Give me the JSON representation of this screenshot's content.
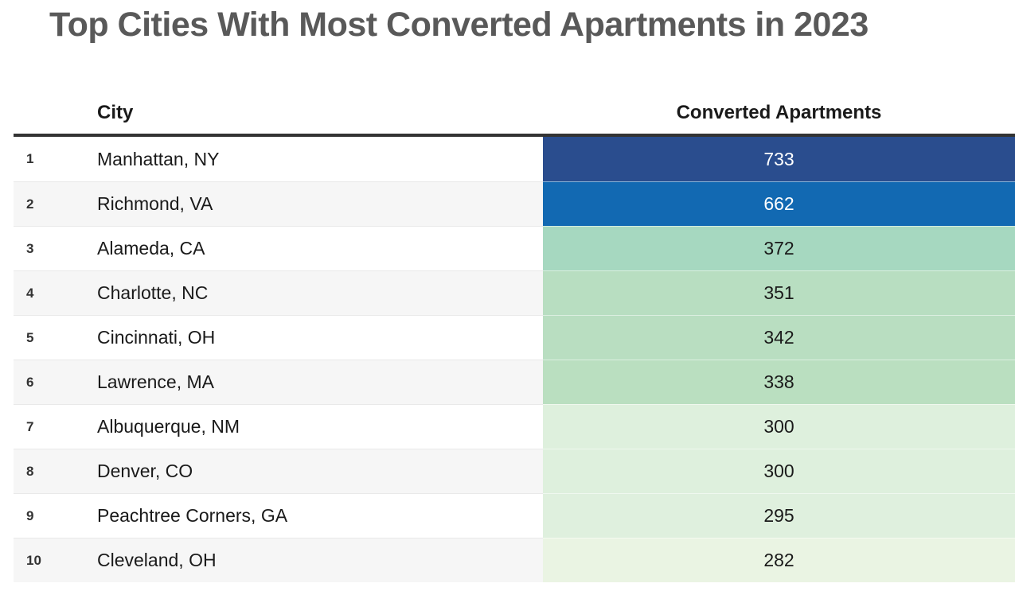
{
  "chart_data": {
    "type": "table",
    "title": "Top Cities With Most Converted Apartments in 2023",
    "columns": [
      "",
      "City",
      "Converted Apartments"
    ],
    "rows": [
      {
        "rank": "1",
        "city": "Manhattan, NY",
        "value": "733",
        "cell_color": "#2a4d8e",
        "text_color": "#ffffff"
      },
      {
        "rank": "2",
        "city": "Richmond, VA",
        "value": "662",
        "cell_color": "#1269b2",
        "text_color": "#ffffff"
      },
      {
        "rank": "3",
        "city": "Alameda, CA",
        "value": "372",
        "cell_color": "#a6d8c0",
        "text_color": "#1a1a1a"
      },
      {
        "rank": "4",
        "city": "Charlotte, NC",
        "value": "351",
        "cell_color": "#b8dec1",
        "text_color": "#1a1a1a"
      },
      {
        "rank": "5",
        "city": "Cincinnati, OH",
        "value": "342",
        "cell_color": "#b9dec1",
        "text_color": "#1a1a1a"
      },
      {
        "rank": "6",
        "city": "Lawrence, MA",
        "value": "338",
        "cell_color": "#badfc0",
        "text_color": "#1a1a1a"
      },
      {
        "rank": "7",
        "city": "Albuquerque, NM",
        "value": "300",
        "cell_color": "#def0dd",
        "text_color": "#1a1a1a"
      },
      {
        "rank": "8",
        "city": "Denver, CO",
        "value": "300",
        "cell_color": "#def0dd",
        "text_color": "#1a1a1a"
      },
      {
        "rank": "9",
        "city": "Peachtree Corners, GA",
        "value": "295",
        "cell_color": "#dff0de",
        "text_color": "#1a1a1a"
      },
      {
        "rank": "10",
        "city": "Cleveland, OH",
        "value": "282",
        "cell_color": "#eaf4e3",
        "text_color": "#1a1a1a"
      }
    ],
    "colors": {
      "title_text": "#595959",
      "header_text": "#1a1a1a",
      "header_rule": "#333333",
      "row_stripe": "#f6f6f6",
      "scale_low": "#eaf4e3",
      "scale_high": "#2a4d8e"
    }
  }
}
